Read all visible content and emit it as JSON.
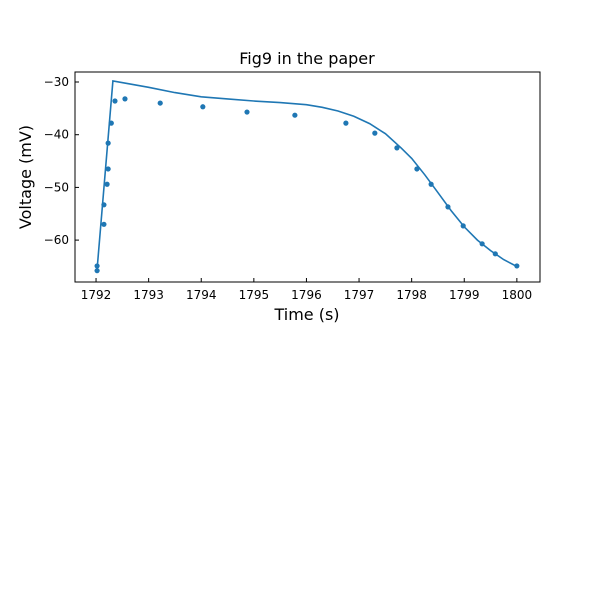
{
  "chart_data": {
    "type": "line",
    "title": "Fig9 in the paper",
    "xlabel": "Time (s)",
    "ylabel": "Voltage (mV)",
    "xlim": [
      1791.6,
      1800.44
    ],
    "ylim": [
      -67.95,
      -28.1
    ],
    "xticks": [
      1792,
      1793,
      1794,
      1795,
      1796,
      1797,
      1798,
      1799,
      1800
    ],
    "yticks": [
      -30,
      -40,
      -50,
      -60
    ],
    "grid": false,
    "color": "#1f77b4",
    "series": [
      {
        "kind": "line",
        "x": [
          1792.02,
          1792.32,
          1792.6,
          1793.0,
          1793.5,
          1794.0,
          1794.5,
          1795.0,
          1795.5,
          1796.0,
          1796.3,
          1796.6,
          1796.9,
          1797.2,
          1797.5,
          1797.8,
          1798.0,
          1798.25,
          1798.5,
          1798.75,
          1799.0,
          1799.25,
          1799.5,
          1799.75,
          1800.0
        ],
        "y": [
          -65.5,
          -29.8,
          -30.3,
          -31.0,
          -32.0,
          -32.8,
          -33.2,
          -33.6,
          -33.9,
          -34.3,
          -34.8,
          -35.5,
          -36.5,
          -37.9,
          -39.8,
          -42.5,
          -44.5,
          -47.6,
          -51.0,
          -54.4,
          -57.5,
          -60.0,
          -62.0,
          -63.7,
          -65.0
        ]
      },
      {
        "kind": "scatter",
        "x": [
          1792.02,
          1792.02,
          1792.15,
          1792.15,
          1792.21,
          1792.23,
          1792.23,
          1792.29,
          1792.36,
          1792.55,
          1793.22,
          1794.03,
          1794.87,
          1795.78,
          1796.75,
          1797.3,
          1797.72,
          1798.1,
          1798.37,
          1798.69,
          1798.98,
          1799.34,
          1799.59,
          1800.0
        ],
        "y": [
          -64.9,
          -65.8,
          -57.0,
          -53.3,
          -49.4,
          -46.5,
          -41.6,
          -37.8,
          -33.6,
          -33.2,
          -34.0,
          -34.7,
          -35.7,
          -36.3,
          -37.8,
          -39.7,
          -42.5,
          -46.5,
          -49.4,
          -53.7,
          -57.3,
          -60.7,
          -62.6,
          -64.9
        ]
      }
    ]
  }
}
